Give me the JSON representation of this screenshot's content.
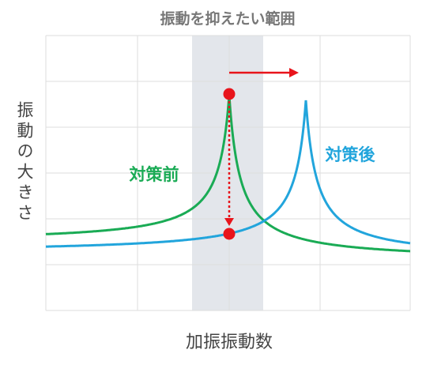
{
  "title": "振動を抑えたい範囲",
  "y_label": "振動の大きさ",
  "x_label": "加振振動数",
  "before_label": "対策前",
  "after_label": "対策後"
}
